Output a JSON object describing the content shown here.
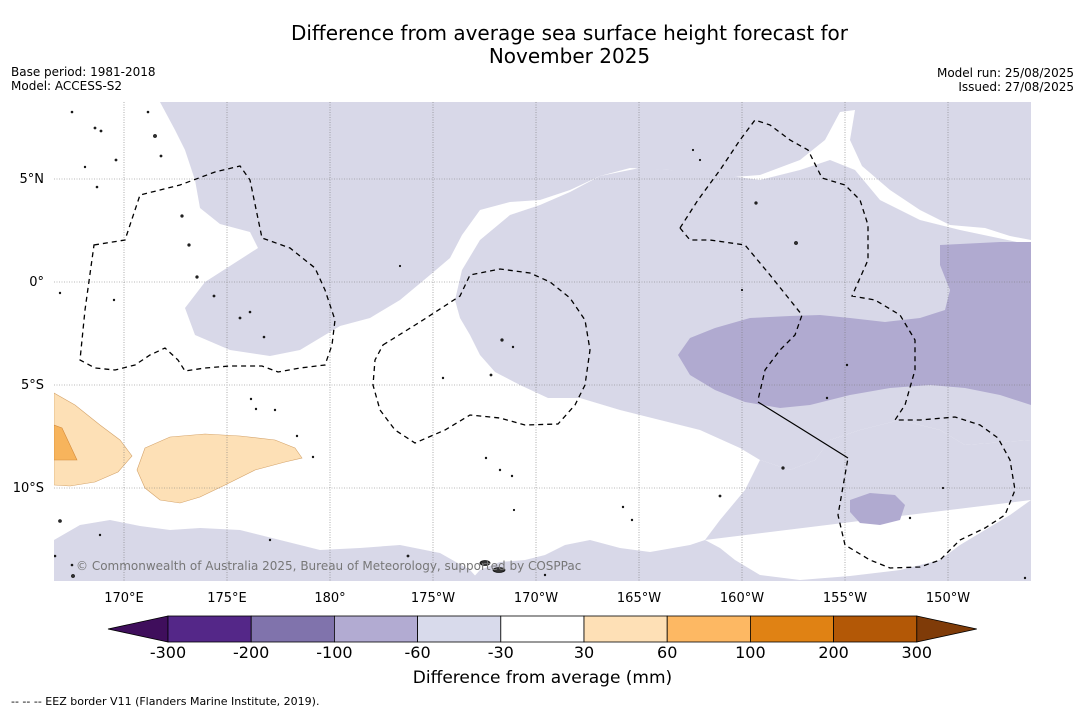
{
  "title": {
    "line1": "Difference from average sea surface height forecast for",
    "line2": "November 2025"
  },
  "meta_left": {
    "base_period": "Base period: 1981-2018",
    "model": "Model: ACCESS-S2"
  },
  "meta_right": {
    "model_run": "Model run: 25/08/2025",
    "issued": "Issued: 27/08/2025"
  },
  "map": {
    "lat_labels": [
      "5°N",
      "0°",
      "5°S",
      "10°S"
    ],
    "lon_labels": [
      "170°E",
      "175°E",
      "180°",
      "175°W",
      "170°W",
      "165°W",
      "160°W",
      "155°W",
      "150°W"
    ],
    "copyright": "© Commonwealth of Australia 2025, Bureau of Meteorology, supported by COSPPac",
    "colors": {
      "-60_to_-30": "#d8d8e8",
      "-100_to_-60": "#b0aad0",
      "30_to_60": "#fde0b6",
      "60_to_100": "#f7b45c",
      "land": "#333333",
      "eez": "#000000"
    }
  },
  "colorbar": {
    "ticks": [
      "-300",
      "-200",
      "-100",
      "-60",
      "-30",
      "30",
      "60",
      "100",
      "200",
      "300"
    ],
    "colors": [
      "#3f0e5c",
      "#542788",
      "#8073ac",
      "#b2abd2",
      "#d8daeb",
      "#ffffff",
      "#fee0b6",
      "#fdb863",
      "#e08214",
      "#b35806",
      "#7f3b08"
    ],
    "label": "Difference from average (mm)"
  },
  "footnote": "--  --  -- EEZ border V11 (Flanders Marine Institute, 2019)."
}
